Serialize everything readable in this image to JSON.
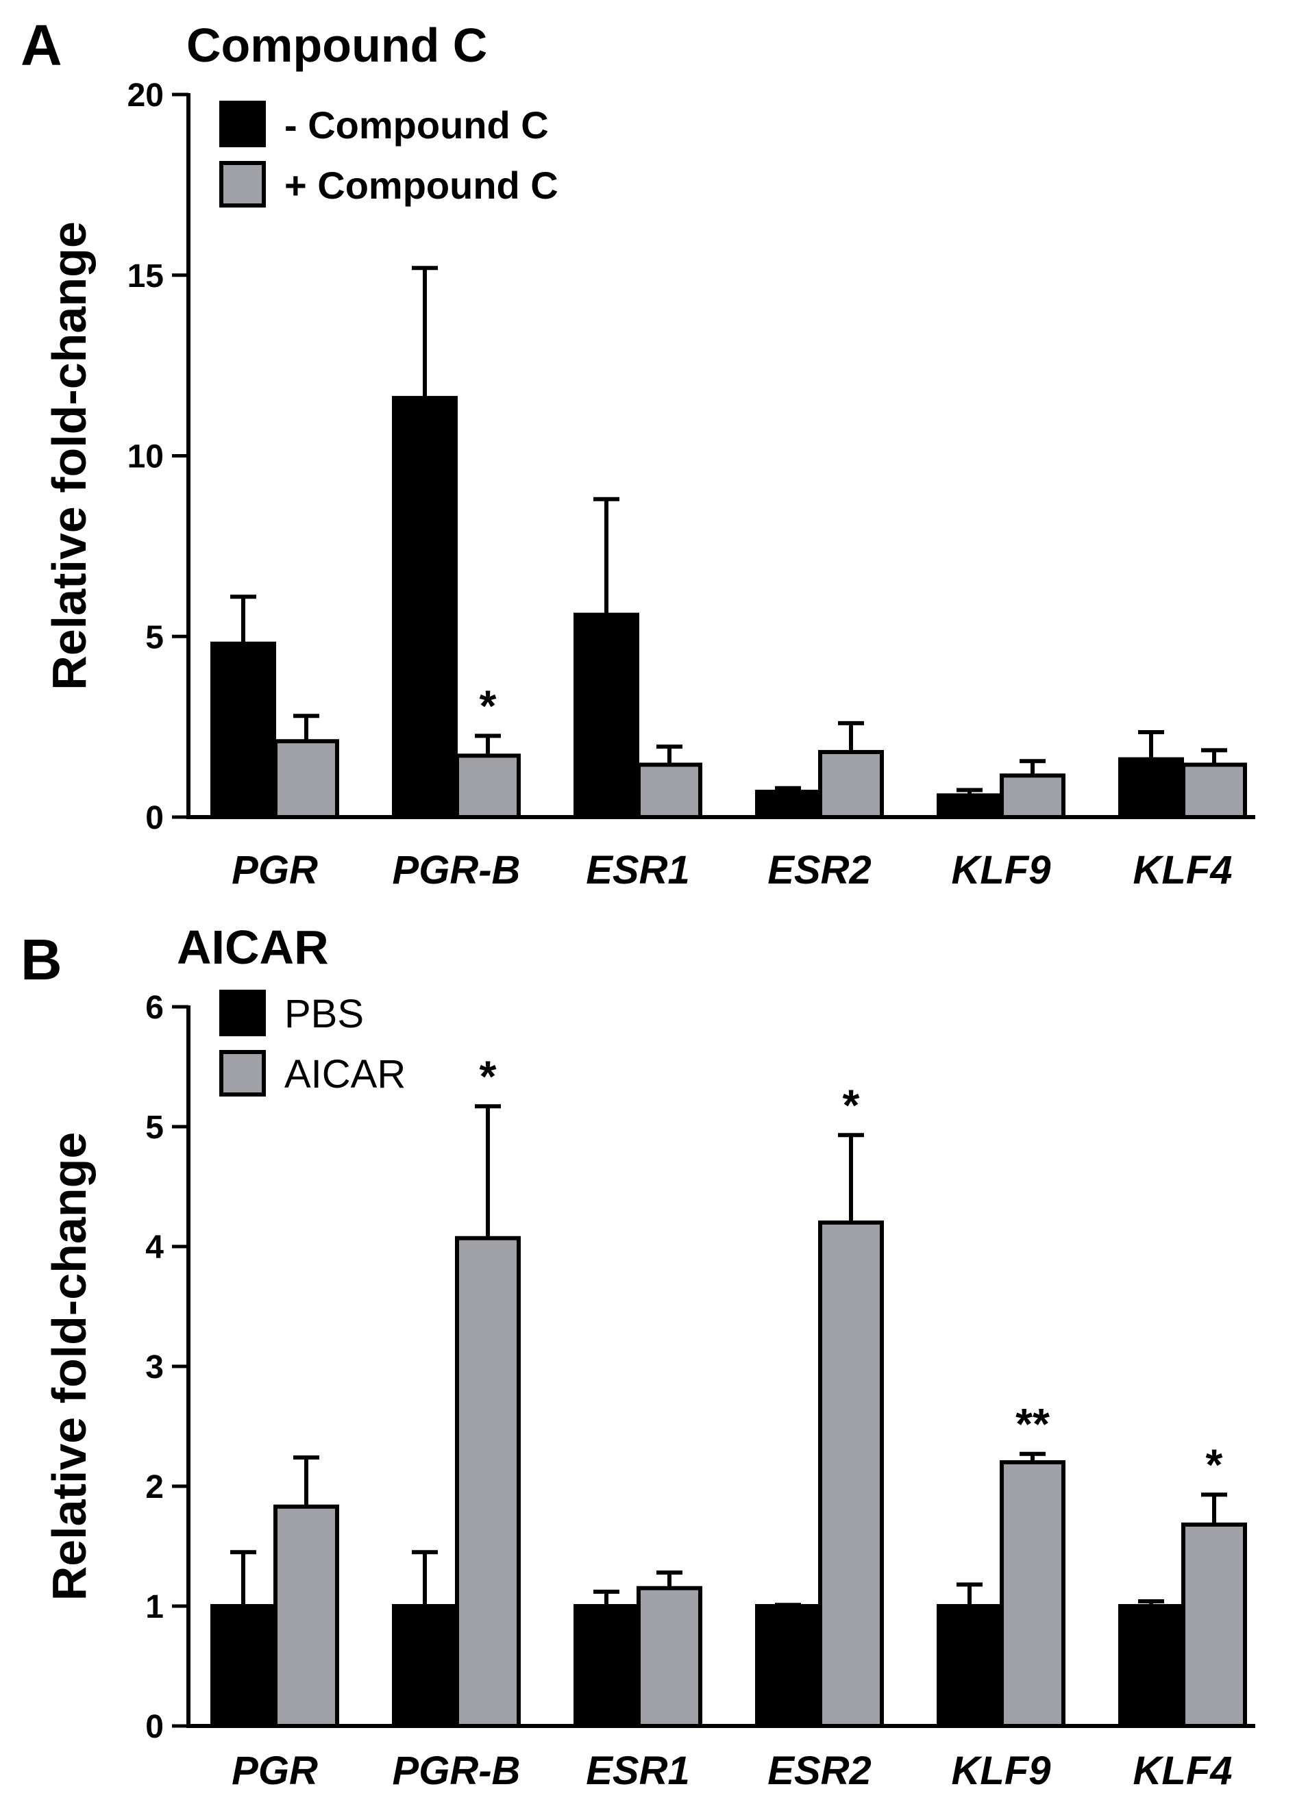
{
  "chart_data": [
    {
      "panel": "A",
      "type": "bar",
      "title": "Compound  C",
      "ylabel": "Relative fold-change",
      "xlabel": "",
      "ylim": [
        0,
        20
      ],
      "yticks": [
        "0",
        "5",
        "10",
        "15",
        "20"
      ],
      "categories": [
        "PGR",
        "PGR-B",
        "ESR1",
        "ESR2",
        "KLF9",
        "KLF4"
      ],
      "series": [
        {
          "name": "- Compound C",
          "color": "#000000",
          "values": [
            4.8,
            11.6,
            5.6,
            0.7,
            0.6,
            1.6
          ],
          "errors": [
            1.3,
            3.6,
            3.2,
            0.1,
            0.15,
            0.75
          ]
        },
        {
          "name": "+ Compound C",
          "color": "#a0a0a7",
          "values": [
            2.1,
            1.7,
            1.45,
            1.8,
            1.15,
            1.45
          ],
          "errors": [
            0.7,
            0.55,
            0.5,
            0.8,
            0.4,
            0.4
          ]
        }
      ],
      "annotations": [
        "",
        "*",
        "",
        "",
        "",
        ""
      ],
      "legend": "top-left",
      "grid": false
    },
    {
      "panel": "B",
      "type": "bar",
      "title": "AICAR",
      "ylabel": "Relative fold-change",
      "xlabel": "",
      "ylim": [
        0,
        6
      ],
      "yticks": [
        "0",
        "1",
        "2",
        "3",
        "4",
        "5",
        "6"
      ],
      "categories": [
        "PGR",
        "PGR-B",
        "ESR1",
        "ESR2",
        "KLF9",
        "KLF4"
      ],
      "series": [
        {
          "name": "PBS",
          "color": "#000000",
          "values": [
            1.0,
            1.0,
            1.0,
            1.0,
            1.0,
            1.0
          ],
          "errors": [
            0.45,
            0.45,
            0.12,
            0.01,
            0.18,
            0.04
          ]
        },
        {
          "name": "AICAR",
          "color": "#a0a0a7",
          "values": [
            1.83,
            4.07,
            1.15,
            4.2,
            2.2,
            1.68
          ],
          "errors": [
            0.41,
            1.1,
            0.13,
            0.73,
            0.07,
            0.25
          ]
        }
      ],
      "annotations": [
        "",
        "*",
        "",
        "*",
        "**",
        "*"
      ],
      "legend": "top-left",
      "grid": false
    }
  ],
  "panels": [
    {
      "letter": "A"
    },
    {
      "letter": "B"
    }
  ]
}
